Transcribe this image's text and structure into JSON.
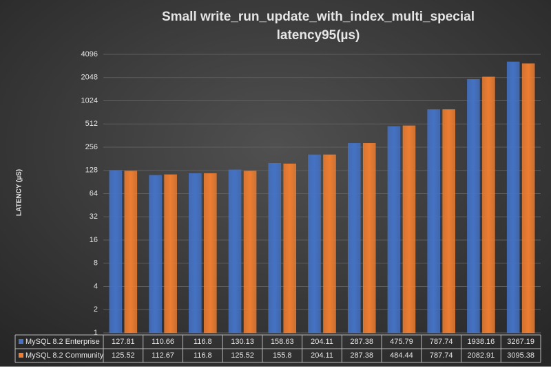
{
  "chart_data": {
    "type": "bar",
    "title": [
      "Small  write_run_update_with_index_multi_special",
      "latency95(µs)"
    ],
    "y_label": "LATENCY (µS)",
    "log_scale": true,
    "log_base": 2,
    "grid": true,
    "ylim": [
      1,
      5800
    ],
    "yticks": [
      1,
      2,
      4,
      8,
      16,
      32,
      64,
      128,
      256,
      512,
      1024,
      2048,
      4096
    ],
    "series": [
      {
        "name": "MySQL 8.2 Enterprise",
        "color": "#4472c4",
        "values": [
          127.81,
          110.66,
          116.8,
          130.13,
          158.63,
          204.11,
          287.38,
          475.79,
          787.74,
          1938.16,
          3267.19
        ]
      },
      {
        "name": "MySQL 8.2 Community",
        "color": "#ed7d31",
        "values": [
          125.52,
          112.67,
          116.8,
          125.52,
          155.8,
          204.11,
          287.38,
          484.44,
          787.74,
          2082.91,
          3095.38
        ]
      }
    ]
  }
}
